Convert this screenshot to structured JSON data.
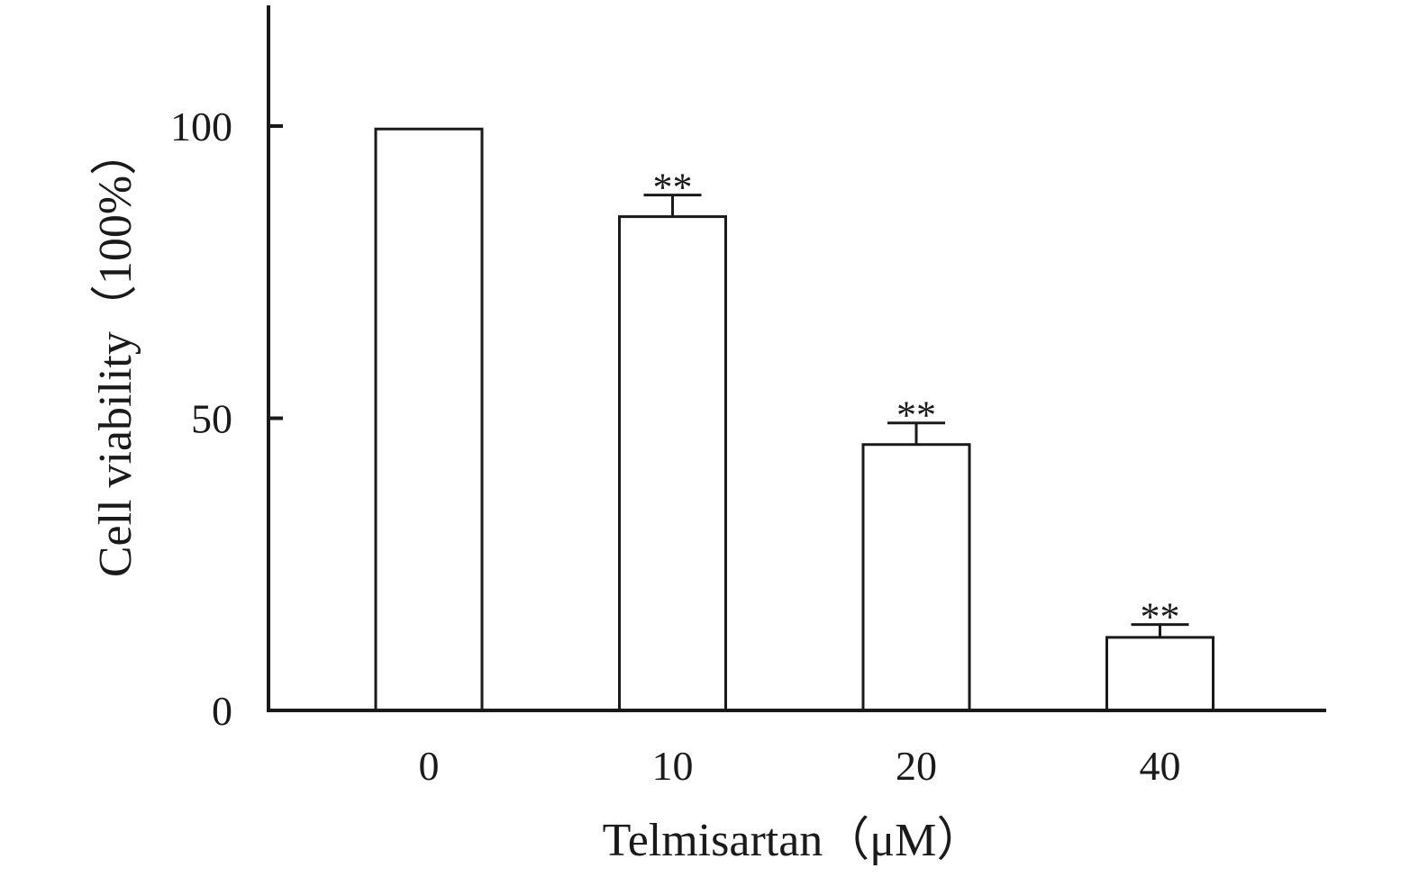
{
  "chart_data": {
    "type": "bar",
    "title": "",
    "xlabel": "Telmisartan（μM）",
    "ylabel": "Cell viability（100%）",
    "categories": [
      "0",
      "10",
      "20",
      "40"
    ],
    "values": [
      99.5,
      84.5,
      45.5,
      12.5
    ],
    "errors": [
      0,
      3.7,
      3.7,
      2.2
    ],
    "annotations": [
      "",
      "**",
      "**",
      "**"
    ],
    "ylim": [
      0,
      120
    ],
    "yticks": [
      0,
      50,
      100
    ],
    "ytick_labels": [
      "0",
      "50",
      "100"
    ],
    "grid": false,
    "colors": {
      "bar_fill": "#ffffff",
      "bar_stroke": "#1a1a1a",
      "axis": "#1a1a1a"
    }
  }
}
